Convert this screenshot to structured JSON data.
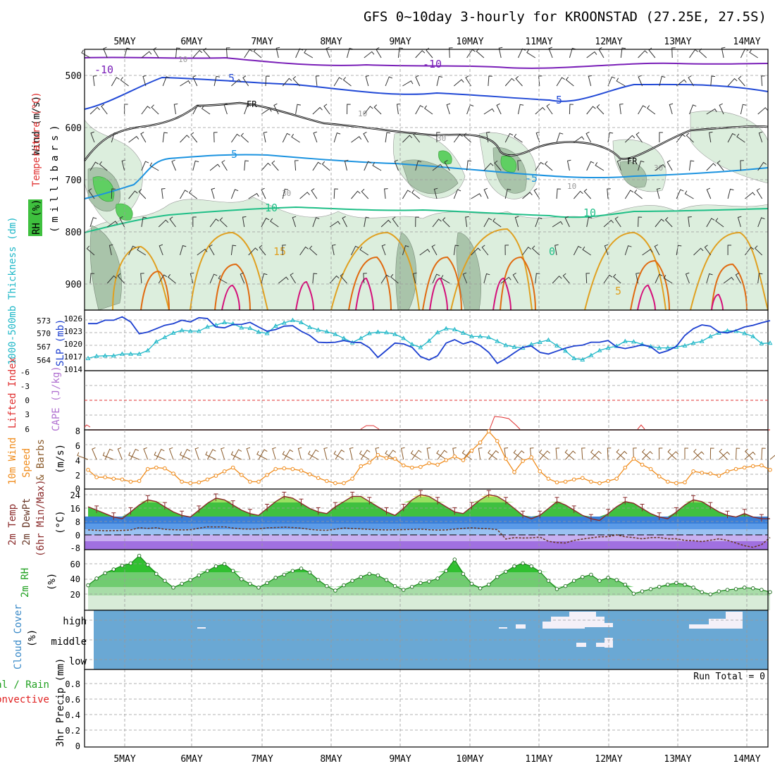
{
  "title": "GFS 0~10day 3-hourly for KROONSTAD (27.25E, 27.5S)",
  "colors": {
    "grid": "#9a9a9a",
    "temp_purple": "#7a1fb8",
    "temp_blue": "#2149d6",
    "temp_cyan": "#1b93e0",
    "temp_green": "#1fbf87",
    "temp_orange": "#e0a020",
    "temp_darkorange": "#e06a10",
    "temp_magenta": "#d4107a",
    "freezing": "#000000",
    "slp": "#1c3fd0",
    "thickness": "#20b8c8",
    "lifted_index": "#e03030",
    "wind10m": "#f08c1c",
    "barb": "#8a5a2a",
    "temp2m": "#8a2a2a",
    "dewpt2m": "#7a4a2a",
    "rh2m": "#20c020",
    "cloud_bg": "#6aa8d4",
    "cloud": "#f4f0f8",
    "precip_total": "#20c020",
    "precip_conv": "#e02020"
  },
  "time_axis": {
    "labels": [
      "5MAY",
      "6MAY",
      "7MAY",
      "8MAY",
      "9MAY",
      "10MAY",
      "11MAY",
      "12MAY",
      "13MAY",
      "14MAY"
    ]
  },
  "panels": {
    "upper": {
      "ylabel_wind": "Wind (m/s)",
      "ylabel_temp": "Temperature (°C)",
      "ylabel_rh": "RH (%)",
      "ylabel_mb": "(millibars)",
      "yticks": [
        "500",
        "600",
        "700",
        "800",
        "900"
      ],
      "contour_labels": [
        "-10",
        "-10",
        "5",
        "-5",
        "FR",
        "FR",
        "5",
        "-5",
        "10",
        "10",
        "15",
        "0",
        "5",
        "10",
        "10",
        "30",
        "30",
        "30",
        "10"
      ]
    },
    "slp": {
      "ylabel_thk": "1000-500mb Thickness (dm)",
      "ylabel_slp": "SLP (mb)",
      "thk_ticks": [
        "573",
        "570",
        "567",
        "564"
      ],
      "slp_ticks": [
        "1026",
        "1023",
        "1020",
        "1017",
        "1014"
      ]
    },
    "li": {
      "ylabel_li": "Lifted Index",
      "ylabel_cape": "CAPE (J/kg)",
      "ticks": [
        "-6",
        "-3",
        "0",
        "3",
        "6"
      ]
    },
    "wind": {
      "ylabel_a": "10m Wind",
      "ylabel_b": "Speed",
      "ylabel_c": "& Barbs",
      "ylabel_unit": "(m/s)",
      "ticks": [
        "8",
        "6",
        "4",
        "2",
        "0"
      ]
    },
    "temp": {
      "ylabel_a": "2m Temp",
      "ylabel_b": "2m DewPt",
      "ylabel_c": "(6hr Min/Max)",
      "ylabel_unit": "(°C)",
      "ticks": [
        "24",
        "16",
        "8",
        "0",
        "-8"
      ]
    },
    "rh": {
      "ylabel_a": "2m RH",
      "ylabel_unit": "(%)",
      "ticks": [
        "60",
        "40",
        "20"
      ]
    },
    "cloud": {
      "ylabel_a": "Cloud Cover",
      "ylabel_unit": "(%)",
      "levels": [
        "high",
        "middle",
        "low"
      ]
    },
    "precip": {
      "ylabel_a": "Total / Rain",
      "ylabel_b": "Convective",
      "ylabel_c": "3hr Precip (mm)",
      "ticks": [
        "0.8",
        "0.6",
        "0.4",
        "0.2",
        "0"
      ],
      "run_total": "Run Total = 0"
    }
  },
  "chart_data": {
    "type": "meteogram",
    "n_steps": 81,
    "step_hours": 3,
    "slp_mb": [
      1024.8,
      1024.8,
      1025.6,
      1025.6,
      1026.4,
      1025.2,
      1022.4,
      1022.8,
      1023.6,
      1024.4,
      1024.8,
      1025.6,
      1025.2,
      1026.2,
      1026.0,
      1024.0,
      1023.8,
      1024.6,
      1024.6,
      1025.1,
      1024.0,
      1023.0,
      1023.4,
      1024.2,
      1024.3,
      1023.0,
      1022.0,
      1020.4,
      1020.3,
      1020.4,
      1020.8,
      1020.4,
      1020.3,
      1019.1,
      1016.8,
      1018.5,
      1020.2,
      1020.0,
      1019.2,
      1017.0,
      1016.2,
      1017.2,
      1020.2,
      1021.0,
      1020.0,
      1020.6,
      1019.6,
      1018.0,
      1015.4,
      1016.5,
      1017.9,
      1019.2,
      1019.5,
      1018.0,
      1017.6,
      1018.3,
      1019.0,
      1019.5,
      1019.7,
      1020.4,
      1020.4,
      1020.8,
      1019.3,
      1018.9,
      1019.3,
      1019.8,
      1019.3,
      1017.8,
      1018.4,
      1019.4,
      1022.0,
      1023.6,
      1024.5,
      1024.2,
      1022.8,
      1022.6,
      1023.2,
      1024.0,
      1024.4,
      1025.0,
      1025.5
    ],
    "thickness_dm": [
      564.4,
      564.9,
      565.0,
      565.0,
      565.4,
      565.4,
      565.4,
      566.2,
      568.2,
      569.2,
      570.2,
      570.8,
      570.6,
      570.6,
      571.6,
      572.0,
      572.6,
      572.3,
      571.4,
      571.3,
      570.4,
      570.1,
      571.8,
      572.5,
      573.1,
      572.6,
      571.5,
      570.9,
      570.5,
      569.9,
      569.0,
      568.0,
      569.0,
      570.1,
      570.4,
      570.3,
      569.9,
      569.0,
      567.6,
      566.9,
      568.4,
      570.3,
      571.2,
      571.0,
      570.2,
      569.4,
      569.4,
      569.2,
      568.3,
      567.4,
      567.0,
      566.8,
      567.6,
      568.1,
      568.6,
      567.3,
      566.1,
      564.4,
      564.1,
      565.1,
      566.2,
      566.8,
      567.2,
      568.3,
      568.2,
      567.6,
      567.1,
      566.8,
      566.8,
      567.0,
      567.3,
      567.9,
      568.3,
      569.4,
      570.2,
      570.7,
      570.6,
      570.1,
      569.4,
      567.8,
      567.9
    ],
    "lifted_index": [
      6,
      6,
      6,
      6,
      6,
      6,
      6,
      6,
      6,
      6,
      6,
      6,
      6,
      6,
      6,
      6,
      6,
      6,
      6,
      6,
      6,
      6,
      6,
      6,
      6,
      6,
      6,
      6,
      6,
      6,
      6,
      6,
      6,
      6,
      6,
      6,
      6,
      6,
      6,
      6,
      6,
      6,
      6,
      6,
      6,
      6,
      6,
      6,
      6,
      6,
      6,
      6,
      6,
      6,
      6,
      6,
      6,
      6,
      6,
      6,
      6,
      6,
      6,
      6,
      6,
      6,
      6,
      6,
      6,
      6,
      6,
      6,
      6,
      6,
      6,
      6,
      6,
      6,
      6,
      6,
      6
    ],
    "wind10m_ms": [
      2.6,
      1.6,
      1.6,
      1.4,
      1.3,
      1.0,
      1.1,
      2.7,
      2.9,
      2.8,
      2.1,
      1.0,
      0.8,
      0.9,
      1.3,
      1.8,
      2.4,
      2.9,
      1.9,
      1.0,
      1.0,
      1.9,
      2.7,
      2.8,
      2.7,
      2.5,
      2.0,
      1.5,
      1.1,
      0.8,
      0.8,
      1.4,
      3.1,
      3.6,
      4.6,
      4.2,
      4.1,
      3.2,
      2.9,
      3.0,
      3.5,
      3.3,
      3.9,
      4.4,
      3.9,
      5.2,
      6.3,
      7.8,
      6.5,
      4.1,
      2.3,
      3.8,
      4.3,
      2.4,
      1.4,
      0.9,
      1.0,
      1.3,
      1.5,
      1.0,
      0.8,
      1.1,
      1.4,
      2.9,
      4.1,
      3.3,
      2.7,
      1.7,
      1.0,
      0.8,
      0.9,
      2.4,
      2.2,
      2.1,
      1.8,
      2.4,
      2.7,
      2.9,
      3.1,
      3.2,
      2.6
    ],
    "temp2m_c": [
      17,
      15,
      13,
      11,
      10,
      14,
      18,
      21,
      20,
      17,
      14,
      12,
      11,
      15,
      19,
      22,
      21,
      18,
      15,
      13,
      12,
      16,
      20,
      23,
      22,
      19,
      16,
      14,
      13,
      17,
      20,
      23,
      23,
      20,
      17,
      14,
      12,
      16,
      21,
      24,
      23,
      20,
      17,
      14,
      13,
      17,
      21,
      24,
      23,
      20,
      16,
      12,
      10,
      12,
      16,
      20,
      18,
      15,
      12,
      10,
      9,
      13,
      17,
      20,
      19,
      16,
      13,
      11,
      10,
      14,
      18,
      21,
      20,
      17,
      14,
      12,
      11,
      13,
      11,
      10,
      10
    ],
    "dewpt2m_c": [
      3.5,
      3.3,
      3.0,
      3.1,
      3.2,
      3.5,
      4.8,
      4.4,
      4.8,
      3.8,
      3.6,
      3.5,
      3.6,
      4.5,
      5.3,
      5.2,
      5.3,
      4.6,
      4.1,
      4.0,
      4.1,
      4.7,
      4.9,
      5.1,
      4.9,
      4.5,
      3.8,
      3.4,
      3.3,
      3.9,
      4.6,
      4.3,
      4.1,
      3.8,
      3.6,
      3.5,
      3.6,
      3.7,
      3.8,
      4.0,
      3.6,
      3.4,
      3.5,
      4.0,
      4.4,
      4.7,
      4.4,
      4.2,
      3.7,
      -1.8,
      -1.0,
      -1.2,
      -1.1,
      -0.7,
      -3.1,
      -3.9,
      -4.1,
      -2.6,
      -1.8,
      -1.1,
      -0.5,
      -0.4,
      0.6,
      -0.5,
      -1.0,
      -1.7,
      -1.0,
      -0.9,
      -1.7,
      -1.7,
      -2.6,
      -2.8,
      -3.3,
      -2.5,
      -1.7,
      -2.6,
      -4.1,
      -5.7,
      -6.6,
      -5.1,
      -0.9
    ],
    "rh2m_pct": [
      33,
      42,
      49,
      54,
      59,
      62,
      72,
      60,
      48,
      39,
      30,
      35,
      40,
      46,
      52,
      58,
      61,
      52,
      41,
      35,
      30,
      36,
      43,
      47,
      52,
      55,
      50,
      40,
      32,
      26,
      33,
      39,
      44,
      48,
      46,
      40,
      32,
      27,
      31,
      36,
      38,
      42,
      52,
      67,
      48,
      35,
      29,
      34,
      44,
      51,
      58,
      62,
      58,
      51,
      39,
      28,
      32,
      39,
      44,
      47,
      39,
      43,
      40,
      34,
      22,
      25,
      28,
      31,
      34,
      36,
      34,
      30,
      24,
      21,
      25,
      27,
      28,
      30,
      29,
      27,
      24
    ],
    "cloud_high": [
      0,
      0,
      0,
      0,
      0,
      0,
      0,
      0,
      0,
      0,
      0,
      0,
      0,
      0,
      0,
      0,
      0,
      0,
      0,
      0,
      0,
      0,
      0,
      0,
      0,
      0,
      0,
      0,
      0,
      0,
      0,
      0,
      0,
      0,
      0,
      0,
      0,
      0,
      0,
      0,
      0,
      0,
      0,
      0,
      0,
      0,
      0,
      0,
      0,
      0,
      0,
      0,
      0,
      0,
      0,
      0,
      0,
      0,
      0,
      0,
      0,
      0,
      0,
      0,
      0,
      0,
      0,
      0,
      0,
      0,
      0,
      0,
      0,
      0,
      0,
      0,
      0,
      0,
      0,
      0,
      0
    ],
    "cloud_mid": [
      0,
      0,
      0,
      0,
      0,
      0,
      0,
      0,
      0,
      0,
      0,
      0,
      0,
      0,
      0,
      0,
      0,
      0,
      0,
      0,
      0,
      0,
      0,
      0,
      0,
      0,
      0,
      0,
      0,
      0,
      0,
      0,
      0,
      0,
      0,
      0,
      0,
      0,
      0,
      0,
      0,
      0,
      0,
      0,
      0,
      0,
      0,
      0,
      0,
      0,
      0,
      0,
      0,
      0,
      0,
      0,
      0,
      0,
      0,
      0,
      0,
      0,
      0,
      0,
      0,
      0,
      0,
      0,
      0,
      0,
      0,
      0,
      0,
      0,
      0,
      0,
      0,
      0,
      0,
      0,
      0
    ],
    "cloud_low": [
      0,
      0,
      0,
      0,
      0,
      0,
      0,
      0,
      0,
      0,
      0,
      0,
      0,
      0,
      0,
      0,
      0,
      0,
      0,
      0,
      0,
      0,
      0,
      0,
      0,
      0,
      0,
      0,
      0,
      0,
      0,
      0,
      0,
      0,
      0,
      0,
      0,
      0,
      0,
      0,
      0,
      0,
      0,
      0,
      0,
      0,
      0,
      0,
      0,
      0,
      0,
      0,
      0,
      0,
      0,
      0,
      0,
      0,
      0,
      0,
      0,
      0,
      0,
      0,
      0,
      0,
      0,
      0,
      0,
      0,
      0,
      0,
      0,
      0,
      0,
      0,
      0,
      0,
      0,
      0,
      0
    ],
    "precip_total_mm": [
      0,
      0,
      0,
      0,
      0,
      0,
      0,
      0,
      0,
      0,
      0,
      0,
      0,
      0,
      0,
      0,
      0,
      0,
      0,
      0,
      0,
      0,
      0,
      0,
      0,
      0,
      0,
      0,
      0,
      0,
      0,
      0,
      0,
      0,
      0,
      0,
      0,
      0,
      0,
      0,
      0,
      0,
      0,
      0,
      0,
      0,
      0,
      0,
      0,
      0,
      0,
      0,
      0,
      0,
      0,
      0,
      0,
      0,
      0,
      0,
      0,
      0,
      0,
      0,
      0,
      0,
      0,
      0,
      0,
      0,
      0,
      0,
      0,
      0,
      0,
      0,
      0,
      0,
      0,
      0,
      0
    ],
    "precip_conv_mm": [
      0,
      0,
      0,
      0,
      0,
      0,
      0,
      0,
      0,
      0,
      0,
      0,
      0,
      0,
      0,
      0,
      0,
      0,
      0,
      0,
      0,
      0,
      0,
      0,
      0,
      0,
      0,
      0,
      0,
      0,
      0,
      0,
      0,
      0,
      0,
      0,
      0,
      0,
      0,
      0,
      0,
      0,
      0,
      0,
      0,
      0,
      0,
      0,
      0,
      0,
      0,
      0,
      0,
      0,
      0,
      0,
      0,
      0,
      0,
      0,
      0,
      0,
      0,
      0,
      0,
      0,
      0,
      0,
      0,
      0,
      0,
      0,
      0,
      0,
      0,
      0,
      0,
      0,
      0,
      0,
      0
    ]
  }
}
